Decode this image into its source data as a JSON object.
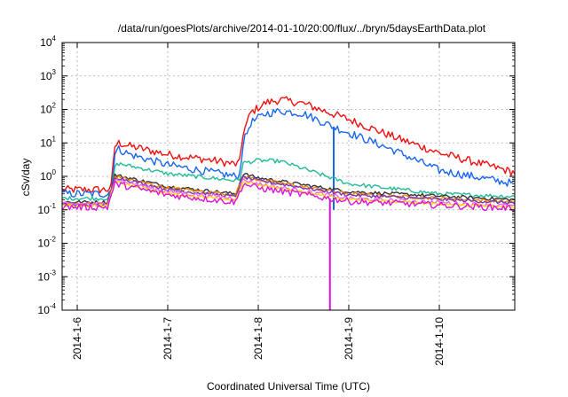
{
  "chart_data": {
    "type": "line",
    "title": "/data/run/goesPlots/archive/2014-01-10/20:00/flux/../bryn/5daysEarthData.plot",
    "xlabel": "Coordinated Universal Time (UTC)",
    "ylabel": "cSv/day",
    "yscale": "log",
    "ylim": [
      0.0001,
      10000
    ],
    "y_ticks": [
      {
        "base": "10",
        "exp": "-4",
        "value": 0.0001
      },
      {
        "base": "10",
        "exp": "-3",
        "value": 0.001
      },
      {
        "base": "10",
        "exp": "-2",
        "value": 0.01
      },
      {
        "base": "10",
        "exp": "-1",
        "value": 0.1
      },
      {
        "base": "10",
        "exp": "0",
        "value": 1
      },
      {
        "base": "10",
        "exp": "1",
        "value": 10
      },
      {
        "base": "10",
        "exp": "2",
        "value": 100
      },
      {
        "base": "10",
        "exp": "3",
        "value": 1000
      },
      {
        "base": "10",
        "exp": "4",
        "value": 10000
      }
    ],
    "xlim": [
      "2014-01-05 20:00",
      "2014-01-10 20:00"
    ],
    "x_ticks": [
      "2014-1-6",
      "2014-1-7",
      "2014-1-8",
      "2014-1-9",
      "2014-1-10"
    ],
    "x_tick_dates": [
      "2014-01-06 00:00",
      "2014-01-07 00:00",
      "2014-01-08 00:00",
      "2014-01-09 00:00",
      "2014-01-10 00:00"
    ],
    "grid": true,
    "legend": "none",
    "series": [
      {
        "color": "#ee1111",
        "noise": 0.12,
        "points": [
          [
            "2014-01-05 20:00",
            0.4
          ],
          [
            "2014-01-06 08:00",
            0.4
          ],
          [
            "2014-01-06 09:00",
            0.5
          ],
          [
            "2014-01-06 10:00",
            8
          ],
          [
            "2014-01-06 11:00",
            10
          ],
          [
            "2014-01-06 14:00",
            8
          ],
          [
            "2014-01-07 00:00",
            4.5
          ],
          [
            "2014-01-07 12:00",
            3
          ],
          [
            "2014-01-07 18:00",
            2.3
          ],
          [
            "2014-01-07 19:00",
            2.5
          ],
          [
            "2014-01-07 20:00",
            20
          ],
          [
            "2014-01-07 22:00",
            80
          ],
          [
            "2014-01-08 02:00",
            160
          ],
          [
            "2014-01-08 06:00",
            195
          ],
          [
            "2014-01-08 12:00",
            150
          ],
          [
            "2014-01-09 00:00",
            50
          ],
          [
            "2014-01-09 12:00",
            15
          ],
          [
            "2014-01-10 00:00",
            5
          ],
          [
            "2014-01-10 20:00",
            1.3
          ]
        ]
      },
      {
        "color": "#1a66ee",
        "noise": 0.12,
        "points": [
          [
            "2014-01-05 20:00",
            0.3
          ],
          [
            "2014-01-06 08:00",
            0.3
          ],
          [
            "2014-01-06 09:00",
            0.4
          ],
          [
            "2014-01-06 10:00",
            5
          ],
          [
            "2014-01-06 11:00",
            6.5
          ],
          [
            "2014-01-06 14:00",
            4.5
          ],
          [
            "2014-01-07 00:00",
            2.2
          ],
          [
            "2014-01-07 12:00",
            1.3
          ],
          [
            "2014-01-07 18:00",
            1.0
          ],
          [
            "2014-01-07 19:00",
            1.1
          ],
          [
            "2014-01-07 20:00",
            10
          ],
          [
            "2014-01-07 22:00",
            40
          ],
          [
            "2014-01-08 02:00",
            75
          ],
          [
            "2014-01-08 06:00",
            90
          ],
          [
            "2014-01-08 12:00",
            75
          ],
          [
            "2014-01-08 20:00",
            30
          ],
          [
            "2014-01-09 12:00",
            6
          ],
          [
            "2014-01-10 00:00",
            1.5
          ],
          [
            "2014-01-10 20:00",
            0.6
          ]
        ],
        "dropout": {
          "date": "2014-01-08 20:00",
          "value": 0.1
        }
      },
      {
        "color": "#22bb99",
        "noise": 0.06,
        "points": [
          [
            "2014-01-05 20:00",
            0.22
          ],
          [
            "2014-01-06 08:00",
            0.22
          ],
          [
            "2014-01-06 09:00",
            0.25
          ],
          [
            "2014-01-06 10:00",
            2
          ],
          [
            "2014-01-06 11:00",
            2.4
          ],
          [
            "2014-01-07 00:00",
            1.2
          ],
          [
            "2014-01-07 18:00",
            0.75
          ],
          [
            "2014-01-07 19:00",
            0.8
          ],
          [
            "2014-01-07 20:00",
            2.5
          ],
          [
            "2014-01-08 00:00",
            3
          ],
          [
            "2014-01-08 06:00",
            2.8
          ],
          [
            "2014-01-08 12:00",
            1.7
          ],
          [
            "2014-01-09 00:00",
            0.6
          ],
          [
            "2014-01-10 00:00",
            0.3
          ],
          [
            "2014-01-10 20:00",
            0.25
          ]
        ]
      },
      {
        "color": "#333333",
        "noise": 0.05,
        "points": [
          [
            "2014-01-05 20:00",
            0.17
          ],
          [
            "2014-01-06 08:00",
            0.17
          ],
          [
            "2014-01-06 10:00",
            1.1
          ],
          [
            "2014-01-07 00:00",
            0.5
          ],
          [
            "2014-01-07 18:00",
            0.3
          ],
          [
            "2014-01-07 20:00",
            1.2
          ],
          [
            "2014-01-08 00:00",
            0.9
          ],
          [
            "2014-01-09 00:00",
            0.35
          ],
          [
            "2014-01-10 20:00",
            0.2
          ]
        ]
      },
      {
        "color": "#ee8800",
        "noise": 0.05,
        "points": [
          [
            "2014-01-05 20:00",
            0.15
          ],
          [
            "2014-01-06 08:00",
            0.15
          ],
          [
            "2014-01-06 10:00",
            1.0
          ],
          [
            "2014-01-07 00:00",
            0.45
          ],
          [
            "2014-01-07 18:00",
            0.28
          ],
          [
            "2014-01-07 20:00",
            1.0
          ],
          [
            "2014-01-08 00:00",
            0.8
          ],
          [
            "2014-01-09 00:00",
            0.3
          ],
          [
            "2014-01-10 20:00",
            0.17
          ]
        ]
      },
      {
        "color": "#7733bb",
        "noise": 0.05,
        "points": [
          [
            "2014-01-05 20:00",
            0.14
          ],
          [
            "2014-01-06 08:00",
            0.14
          ],
          [
            "2014-01-06 10:00",
            0.95
          ],
          [
            "2014-01-07 00:00",
            0.4
          ],
          [
            "2014-01-07 18:00",
            0.25
          ],
          [
            "2014-01-07 20:00",
            0.95
          ],
          [
            "2014-01-08 00:00",
            0.75
          ],
          [
            "2014-01-09 00:00",
            0.28
          ],
          [
            "2014-01-10 20:00",
            0.16
          ]
        ]
      },
      {
        "color": "#ee66ee",
        "noise": 0.06,
        "points": [
          [
            "2014-01-05 20:00",
            0.15
          ],
          [
            "2014-01-06 08:00",
            0.15
          ],
          [
            "2014-01-06 10:00",
            0.8
          ],
          [
            "2014-01-07 00:00",
            0.35
          ],
          [
            "2014-01-07 18:00",
            0.22
          ],
          [
            "2014-01-07 20:00",
            0.8
          ],
          [
            "2014-01-08 00:00",
            0.6
          ],
          [
            "2014-01-09 00:00",
            0.22
          ],
          [
            "2014-01-10 20:00",
            0.13
          ]
        ]
      },
      {
        "color": "#ffdd00",
        "noise": 0.04,
        "points": [
          [
            "2014-01-05 20:00",
            0.13
          ],
          [
            "2014-01-06 08:00",
            0.13
          ],
          [
            "2014-01-06 10:00",
            0.7
          ],
          [
            "2014-01-07 00:00",
            0.3
          ],
          [
            "2014-01-07 18:00",
            0.2
          ],
          [
            "2014-01-07 20:00",
            0.7
          ],
          [
            "2014-01-08 00:00",
            0.55
          ],
          [
            "2014-01-09 00:00",
            0.2
          ],
          [
            "2014-01-10 20:00",
            0.12
          ]
        ]
      },
      {
        "color": "#dd11dd",
        "noise": 0.1,
        "points": [
          [
            "2014-01-05 20:00",
            0.12
          ],
          [
            "2014-01-06 08:00",
            0.12
          ],
          [
            "2014-01-06 10:00",
            0.6
          ],
          [
            "2014-01-07 00:00",
            0.28
          ],
          [
            "2014-01-07 18:00",
            0.17
          ],
          [
            "2014-01-07 20:00",
            0.6
          ],
          [
            "2014-01-08 00:00",
            0.45
          ],
          [
            "2014-01-09 00:00",
            0.18
          ],
          [
            "2014-01-10 20:00",
            0.11
          ]
        ],
        "dropout": {
          "date": "2014-01-08 19:00",
          "value": 0.0001
        }
      }
    ]
  }
}
